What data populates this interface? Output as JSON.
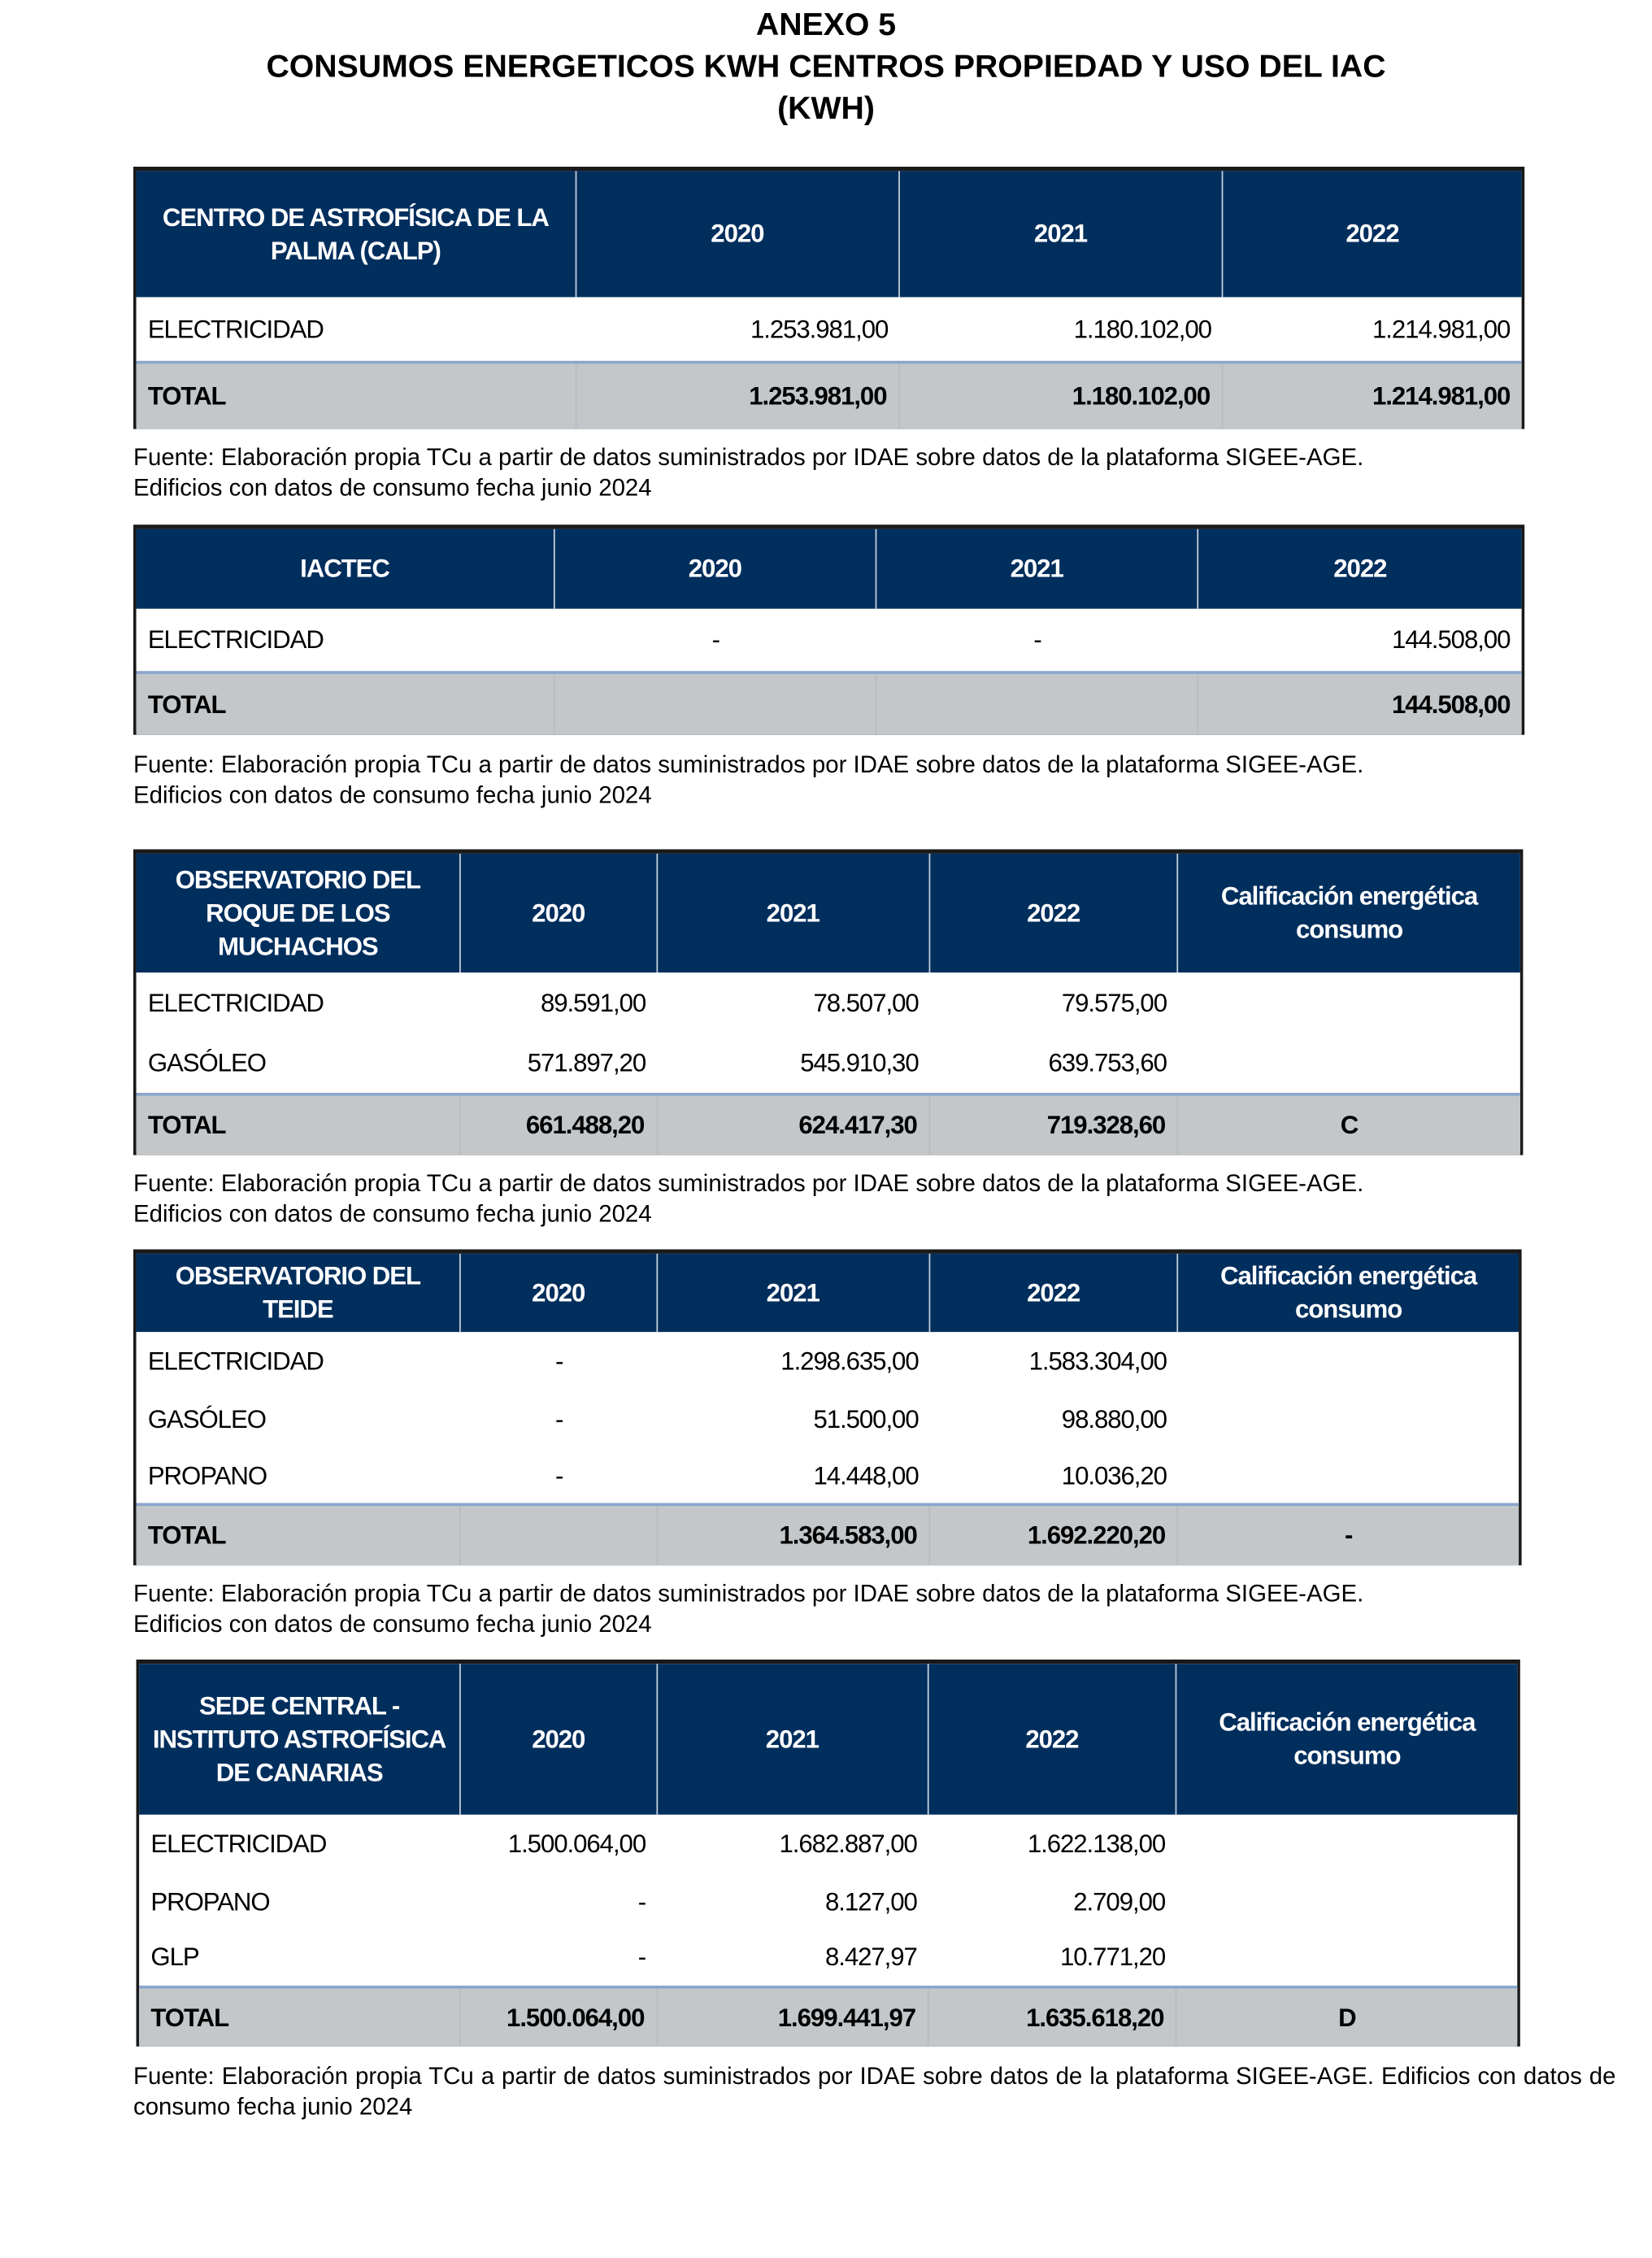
{
  "title": {
    "line1": "ANEXO 5",
    "line2": "CONSUMOS ENERGETICOS KWH CENTROS PROPIEDAD Y USO DEL IAC",
    "line3": "(KWH)"
  },
  "colors": {
    "header_bg": "#002e5d",
    "total_bg": "#c3c7ca",
    "separator": "#8aa6cc"
  },
  "tables": [
    {
      "headers": [
        "CENTRO DE ASTROFÍSICA DE LA PALMA (CALP)",
        "2020",
        "2021",
        "2022"
      ],
      "rows": [
        [
          "ELECTRICIDAD",
          "1.253.981,00",
          "1.180.102,00",
          "1.214.981,00"
        ]
      ],
      "total": [
        "TOTAL",
        "1.253.981,00",
        "1.180.102,00",
        "1.214.981,00"
      ],
      "source": [
        "Fuente: Elaboración propia TCu a partir de datos suministrados por IDAE sobre datos de la plataforma SIGEE-AGE.",
        "Edificios con datos de consumo fecha junio 2024"
      ]
    },
    {
      "headers": [
        "IACTEC",
        "2020",
        "2021",
        "2022"
      ],
      "rows": [
        [
          "ELECTRICIDAD",
          "-",
          "-",
          "144.508,00"
        ]
      ],
      "total": [
        "TOTAL",
        "",
        "",
        "144.508,00"
      ],
      "source": [
        "Fuente: Elaboración propia TCu a partir de datos suministrados por IDAE sobre datos de la plataforma SIGEE-AGE.",
        "Edificios con datos de consumo fecha junio 2024"
      ]
    },
    {
      "headers": [
        "OBSERVATORIO DEL ROQUE DE LOS MUCHACHOS",
        "2020",
        "2021",
        "2022",
        "Calificación energética consumo"
      ],
      "rows": [
        [
          "ELECTRICIDAD",
          "89.591,00",
          "78.507,00",
          "79.575,00",
          ""
        ],
        [
          "GASÓLEO",
          "571.897,20",
          "545.910,30",
          "639.753,60",
          ""
        ]
      ],
      "total": [
        "TOTAL",
        "661.488,20",
        "624.417,30",
        "719.328,60",
        "C"
      ],
      "source": [
        "Fuente: Elaboración propia TCu a partir de datos suministrados por IDAE sobre datos de la plataforma SIGEE-AGE.",
        "Edificios con datos de consumo fecha junio 2024"
      ]
    },
    {
      "headers": [
        "OBSERVATORIO DEL TEIDE",
        "2020",
        "2021",
        "2022",
        "Calificación energética consumo"
      ],
      "rows": [
        [
          "ELECTRICIDAD",
          "-",
          "1.298.635,00",
          "1.583.304,00",
          ""
        ],
        [
          "GASÓLEO",
          "-",
          "51.500,00",
          "98.880,00",
          ""
        ],
        [
          "PROPANO",
          "-",
          "14.448,00",
          "10.036,20",
          ""
        ]
      ],
      "total": [
        "TOTAL",
        "",
        "1.364.583,00",
        "1.692.220,20",
        "-"
      ],
      "source": [
        "Fuente: Elaboración propia TCu a partir de datos suministrados por IDAE sobre datos de la plataforma SIGEE-AGE.",
        "Edificios con datos de consumo fecha junio 2024"
      ]
    },
    {
      "headers": [
        "SEDE CENTRAL - INSTITUTO ASTROFÍSICA DE CANARIAS",
        "2020",
        "2021",
        "2022",
        "Calificación energética consumo"
      ],
      "rows": [
        [
          "ELECTRICIDAD",
          "1.500.064,00",
          "1.682.887,00",
          "1.622.138,00",
          ""
        ],
        [
          "PROPANO",
          "-",
          "8.127,00",
          "2.709,00",
          ""
        ],
        [
          "GLP",
          "-",
          "8.427,97",
          "10.771,20",
          ""
        ]
      ],
      "total": [
        "TOTAL",
        "1.500.064,00",
        "1.699.441,97",
        "1.635.618,20",
        "D"
      ],
      "source": [
        "Fuente: Elaboración propia TCu a partir de datos suministrados por IDAE sobre datos de la plataforma SIGEE-AGE. Edificios con datos de consumo fecha junio 2024"
      ]
    }
  ]
}
